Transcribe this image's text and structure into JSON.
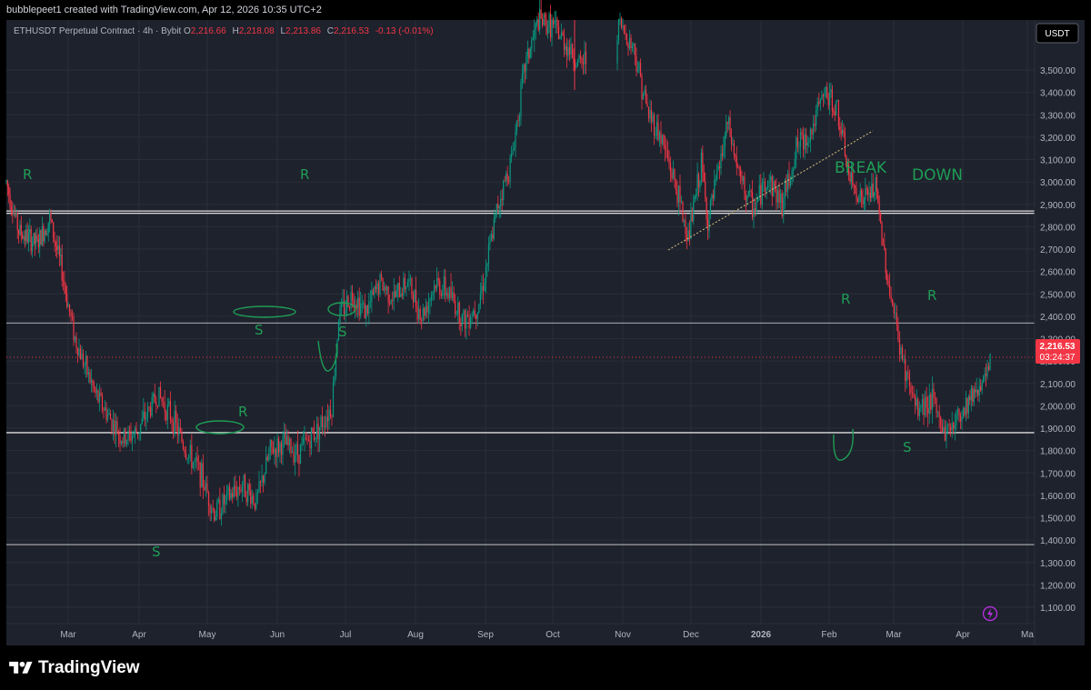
{
  "header": {
    "text": "bubblepeet1 created with TradingView.com, Apr 12, 2026 10:35 UTC+2"
  },
  "legend": {
    "symbol": "ETHUSDT Perpetual Contract · 4h · Bybit",
    "open_label": "O",
    "open_value": "2,216.66",
    "high_label": "H",
    "high_value": "2,218.08",
    "low_label": "L",
    "low_value": "2,213.86",
    "close_label": "C",
    "close_value": "2,216.53",
    "change": "-0.13 (-0.01%)"
  },
  "currency_badge": "USDT",
  "price_badge": {
    "price": "2,216.53",
    "countdown": "03:24:37"
  },
  "footer": {
    "brand": "TradingView"
  },
  "colors": {
    "background": "#1e222d",
    "grid": "#2a2e39",
    "up": "#089981",
    "down": "#f23645",
    "annotation": "#1f9d55",
    "hline": "#ffffff"
  },
  "icons": {
    "logo": "tradingview-logo-icon",
    "alert": "lightning-icon"
  },
  "annotations": {
    "resistance": "R",
    "support": "S",
    "breakdown_line1": "BREAK",
    "breakdown_line2": "DOWN"
  },
  "chart_data": {
    "type": "candlestick",
    "title": "ETHUSDT Perpetual Contract · 4h · Bybit",
    "timeframe": "4h",
    "x_ticks": [
      "Mar",
      "Apr",
      "May",
      "Jun",
      "Jul",
      "Aug",
      "Sep",
      "Oct",
      "Nov",
      "Dec",
      "2026",
      "Feb",
      "Mar",
      "Apr",
      "Ma"
    ],
    "y_ticks": [
      1100,
      1200,
      1300,
      1400,
      1500,
      1600,
      1700,
      1800,
      1900,
      2000,
      2100,
      2200,
      2300,
      2400,
      2500,
      2600,
      2700,
      2800,
      2900,
      3000,
      3100,
      3200,
      3300,
      3400,
      3500
    ],
    "y_tick_labels": [
      "1,100.00",
      "1,200.00",
      "1,300.00",
      "1,400.00",
      "1,500.00",
      "1,600.00",
      "1,700.00",
      "1,800.00",
      "1,900.00",
      "2,000.00",
      "2,100.00",
      "2,200.00",
      "2,300.00",
      "2,400.00",
      "2,500.00",
      "2,600.00",
      "2,700.00",
      "2,800.00",
      "2,900.00",
      "3,000.00",
      "3,100.00",
      "3,200.00",
      "3,300.00",
      "3,400.00",
      "3,500.00"
    ],
    "ylim": [
      1045,
      3720
    ],
    "last_price": 2216.53,
    "horizontal_levels": [
      2870,
      2860,
      2370,
      1880,
      1380
    ],
    "price_path": [
      [
        0.0,
        3000
      ],
      [
        0.2,
        2780
      ],
      [
        0.5,
        2720
      ],
      [
        0.7,
        2840
      ],
      [
        0.9,
        2600
      ],
      [
        1.1,
        2300
      ],
      [
        1.4,
        2050
      ],
      [
        1.6,
        1950
      ],
      [
        1.8,
        1850
      ],
      [
        2.0,
        1880
      ],
      [
        2.3,
        2050
      ],
      [
        2.5,
        1950
      ],
      [
        2.7,
        1800
      ],
      [
        2.9,
        1700
      ],
      [
        3.1,
        1520
      ],
      [
        3.3,
        1590
      ],
      [
        3.5,
        1650
      ],
      [
        3.7,
        1570
      ],
      [
        3.9,
        1800
      ],
      [
        4.1,
        1830
      ],
      [
        4.3,
        1790
      ],
      [
        4.6,
        1900
      ],
      [
        4.8,
        2000
      ],
      [
        4.9,
        2400
      ],
      [
        5.1,
        2500
      ],
      [
        5.3,
        2420
      ],
      [
        5.5,
        2550
      ],
      [
        5.7,
        2480
      ],
      [
        5.9,
        2560
      ],
      [
        6.1,
        2400
      ],
      [
        6.3,
        2550
      ],
      [
        6.5,
        2500
      ],
      [
        6.7,
        2380
      ],
      [
        6.9,
        2450
      ],
      [
        7.0,
        2580
      ],
      [
        7.2,
        2900
      ],
      [
        7.4,
        3100
      ],
      [
        7.6,
        3520
      ],
      [
        7.8,
        3720
      ],
      [
        8.0,
        3700
      ],
      [
        8.2,
        3620
      ],
      [
        8.4,
        3520
      ],
      [
        9.0,
        3700
      ],
      [
        9.2,
        3600
      ],
      [
        9.4,
        3320
      ],
      [
        9.6,
        3200
      ],
      [
        9.8,
        3000
      ],
      [
        10.0,
        2750
      ],
      [
        10.2,
        3080
      ],
      [
        10.3,
        2820
      ],
      [
        10.5,
        3100
      ],
      [
        10.6,
        3260
      ],
      [
        10.8,
        3000
      ],
      [
        11.0,
        2880
      ],
      [
        11.2,
        3020
      ],
      [
        11.4,
        2900
      ],
      [
        11.6,
        3150
      ],
      [
        11.8,
        3220
      ],
      [
        12.0,
        3400
      ],
      [
        12.2,
        3320
      ],
      [
        12.4,
        3000
      ],
      [
        12.6,
        2920
      ],
      [
        12.8,
        2970
      ],
      [
        13.0,
        2550
      ],
      [
        13.2,
        2200
      ],
      [
        13.4,
        1980
      ],
      [
        13.6,
        2030
      ],
      [
        13.8,
        1880
      ],
      [
        14.0,
        1960
      ],
      [
        14.2,
        2060
      ],
      [
        14.4,
        2120
      ],
      [
        14.6,
        2380
      ],
      [
        14.8,
        2120
      ],
      [
        15.0,
        2000
      ],
      [
        15.2,
        2100
      ],
      [
        15.3,
        2216.53
      ]
    ],
    "x_at_index": [
      0,
      68,
      143,
      221,
      298,
      373,
      449,
      526,
      600,
      675,
      750,
      822,
      900,
      970,
      1048,
      1122
    ],
    "diagonal_trendline": [
      [
        0.0,
        2630
      ],
      [
        1.0,
        3150
      ]
    ],
    "legend": "none",
    "grid": true
  }
}
